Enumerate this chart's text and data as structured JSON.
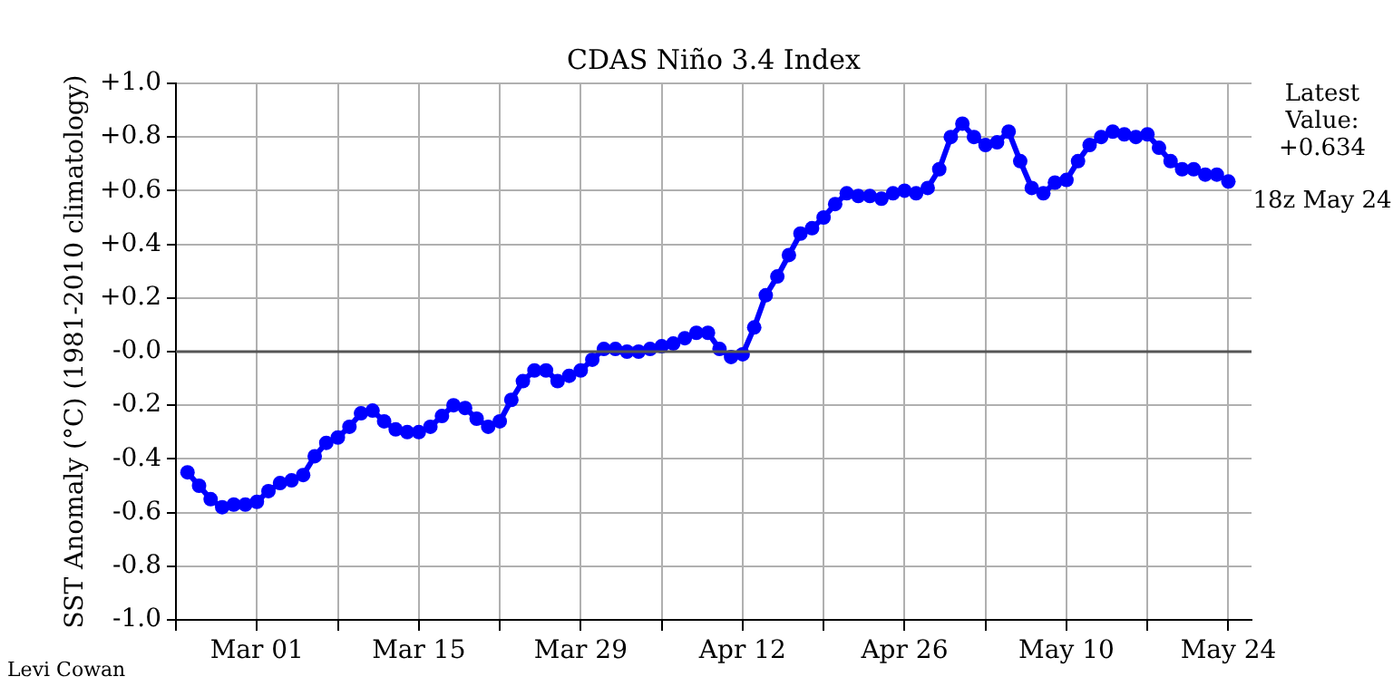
{
  "chart_data": {
    "type": "line",
    "title": "CDAS Niño 3.4 Index",
    "ylabel": "SST Anomaly (°C) (1981-2010 climatology)",
    "annotations": [
      "Latest\nValue:\n+0.634",
      "18z May 24",
      "Levi Cowan"
    ],
    "x": [
      "--02-23",
      "--02-24",
      "--02-25",
      "--02-26",
      "--02-27",
      "--02-28",
      "--03-01",
      "--03-02",
      "--03-03",
      "--03-04",
      "--03-05",
      "--03-06",
      "--03-07",
      "--03-08",
      "--03-09",
      "--03-10",
      "--03-11",
      "--03-12",
      "--03-13",
      "--03-14",
      "--03-15",
      "--03-16",
      "--03-17",
      "--03-18",
      "--03-19",
      "--03-20",
      "--03-21",
      "--03-22",
      "--03-23",
      "--03-24",
      "--03-25",
      "--03-26",
      "--03-27",
      "--03-28",
      "--03-29",
      "--03-30",
      "--03-31",
      "--04-01",
      "--04-02",
      "--04-03",
      "--04-04",
      "--04-05",
      "--04-06",
      "--04-07",
      "--04-08",
      "--04-09",
      "--04-10",
      "--04-11",
      "--04-12",
      "--04-13",
      "--04-14",
      "--04-15",
      "--04-16",
      "--04-17",
      "--04-18",
      "--04-19",
      "--04-20",
      "--04-21",
      "--04-22",
      "--04-23",
      "--04-24",
      "--04-25",
      "--04-26",
      "--04-27",
      "--04-28",
      "--04-29",
      "--04-30",
      "--05-01",
      "--05-02",
      "--05-03",
      "--05-04",
      "--05-05",
      "--05-06",
      "--05-07",
      "--05-08",
      "--05-09",
      "--05-10",
      "--05-11",
      "--05-12",
      "--05-13",
      "--05-14",
      "--05-15",
      "--05-16",
      "--05-17",
      "--05-18",
      "--05-19",
      "--05-20",
      "--05-21",
      "--05-22",
      "--05-23",
      "--05-24"
    ],
    "series": [
      {
        "color": "#0000ff",
        "values": [
          -0.45,
          -0.5,
          -0.55,
          -0.58,
          -0.57,
          -0.57,
          -0.56,
          -0.52,
          -0.49,
          -0.48,
          -0.46,
          -0.39,
          -0.34,
          -0.32,
          -0.28,
          -0.23,
          -0.22,
          -0.26,
          -0.29,
          -0.3,
          -0.3,
          -0.28,
          -0.24,
          -0.2,
          -0.21,
          -0.25,
          -0.28,
          -0.26,
          -0.18,
          -0.11,
          -0.07,
          -0.07,
          -0.11,
          -0.09,
          -0.07,
          -0.03,
          0.01,
          0.01,
          0.0,
          0.0,
          0.01,
          0.02,
          0.03,
          0.05,
          0.07,
          0.07,
          0.01,
          -0.02,
          -0.01,
          0.09,
          0.21,
          0.28,
          0.36,
          0.44,
          0.46,
          0.5,
          0.55,
          0.59,
          0.58,
          0.58,
          0.57,
          0.59,
          0.6,
          0.59,
          0.61,
          0.68,
          0.8,
          0.85,
          0.8,
          0.77,
          0.78,
          0.82,
          0.71,
          0.61,
          0.59,
          0.63,
          0.64,
          0.71,
          0.77,
          0.8,
          0.82,
          0.81,
          0.8,
          0.81,
          0.76,
          0.71,
          0.68,
          0.68,
          0.66,
          0.66,
          0.634
        ]
      }
    ],
    "xlim": [
      "--02-22",
      "--05-26"
    ],
    "xticks": [
      {
        "value": "--02-22",
        "label": null
      },
      {
        "value": "--03-01",
        "label": "Mar 01"
      },
      {
        "value": "--03-08",
        "label": null
      },
      {
        "value": "--03-15",
        "label": "Mar 15"
      },
      {
        "value": "--03-22",
        "label": null
      },
      {
        "value": "--03-29",
        "label": "Mar 29"
      },
      {
        "value": "--04-05",
        "label": null
      },
      {
        "value": "--04-12",
        "label": "Apr 12"
      },
      {
        "value": "--04-19",
        "label": null
      },
      {
        "value": "--04-26",
        "label": "Apr 26"
      },
      {
        "value": "--05-03",
        "label": null
      },
      {
        "value": "--05-10",
        "label": "May 10"
      },
      {
        "value": "--05-17",
        "label": null
      },
      {
        "value": "--05-24",
        "label": "May 24"
      }
    ],
    "ylim": [
      -1.0,
      1.0
    ],
    "yticks": [
      {
        "value": -1.0,
        "label": "-1.0"
      },
      {
        "value": -0.8,
        "label": "-0.8"
      },
      {
        "value": -0.6,
        "label": "-0.6"
      },
      {
        "value": -0.4,
        "label": "-0.4"
      },
      {
        "value": -0.2,
        "label": "-0.2"
      },
      {
        "value": 0,
        "label": "-0.0"
      },
      {
        "value": 0.2,
        "label": "+0.2"
      },
      {
        "value": 0.4,
        "label": "+0.4"
      },
      {
        "value": 0.6,
        "label": "+0.6"
      },
      {
        "value": 0.8,
        "label": "+0.8"
      },
      {
        "value": 1.0,
        "label": "+1.0"
      }
    ],
    "ref_lines": [
      {
        "axis": "y",
        "value": 0,
        "color": "#555555"
      }
    ],
    "grid": true,
    "legend": false,
    "marker": "circle",
    "line_style": "solid"
  }
}
